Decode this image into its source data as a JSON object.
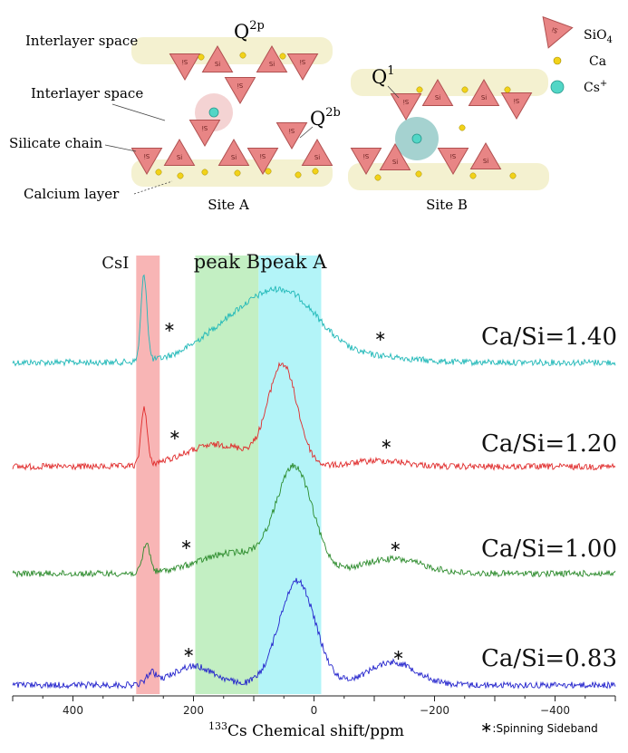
{
  "schematic": {
    "interlayer_space_top": "Interlayer space",
    "interlayer_space_mid": "Interlayer space",
    "silicate_chain": "Silicate chain",
    "calcium_layer": "Calcium layer",
    "site_a": "Site A",
    "site_b": "Site B",
    "q2p_base": "Q",
    "q2p_sup": "2p",
    "q2b_base": "Q",
    "q2b_sup": "2b",
    "q1_base": "Q",
    "q1_sup": "1",
    "si_label": "Si",
    "legend": {
      "sio4_base": "SiO",
      "sio4_sub": "4",
      "ca": "Ca",
      "cs_base": "Cs",
      "cs_sup": "+"
    }
  },
  "colors": {
    "tetra_fill": "#e88585",
    "tetra_stroke": "#b05050",
    "layer_fill": "#f4f1d0",
    "ca_fill": "#f2d21a",
    "cs_fill": "#52d6c6",
    "site_a_halo": "#f0c4c4",
    "site_b_halo": "#8fc7c4",
    "band_csi": "#f7a8a8",
    "band_b": "#b8ecb8",
    "band_a": "#a6f2f7",
    "series_140": "#1fb8b8",
    "series_120": "#e02a2a",
    "series_100": "#2a8a2a",
    "series_083": "#2222cc"
  },
  "chart_data": {
    "type": "line",
    "xlabel_sup": "133",
    "xlabel_main": "Cs Chemical shift/ppm",
    "xlim": [
      500,
      -500
    ],
    "x_reversed": true,
    "x_ticks": [
      400,
      200,
      0,
      -200,
      -400
    ],
    "x_tick_labels": [
      "400",
      "200",
      "0",
      "−200",
      "−400"
    ],
    "y_axis_shown": false,
    "bands": [
      {
        "label": "CsI",
        "from": 295,
        "to": 256
      },
      {
        "label": "peak B",
        "from": 197,
        "to": 92
      },
      {
        "label": "peak A",
        "from": 92,
        "to": -12
      }
    ],
    "series": [
      {
        "name": "Ca/Si=1.40",
        "peaks": [
          {
            "pos": 282,
            "height": 95,
            "width": 5
          },
          {
            "pos": 130,
            "height": 40,
            "width": 60
          },
          {
            "pos": 40,
            "height": 65,
            "width": 55
          },
          {
            "pos": -110,
            "height": 6,
            "width": 55
          }
        ]
      },
      {
        "name": "Ca/Si=1.20",
        "peaks": [
          {
            "pos": 282,
            "height": 58,
            "width": 5
          },
          {
            "pos": 160,
            "height": 22,
            "width": 55
          },
          {
            "pos": 52,
            "height": 100,
            "width": 24
          },
          {
            "pos": -110,
            "height": 6,
            "width": 45
          }
        ]
      },
      {
        "name": "Ca/Si=1.00",
        "peaks": [
          {
            "pos": 278,
            "height": 28,
            "width": 6
          },
          {
            "pos": 130,
            "height": 20,
            "width": 60
          },
          {
            "pos": 32,
            "height": 98,
            "width": 30
          },
          {
            "pos": -130,
            "height": 14,
            "width": 50
          }
        ]
      },
      {
        "name": "Ca/Si=0.83",
        "peaks": [
          {
            "pos": 270,
            "height": 10,
            "width": 8
          },
          {
            "pos": 200,
            "height": 18,
            "width": 35
          },
          {
            "pos": 28,
            "height": 100,
            "width": 30
          },
          {
            "pos": -130,
            "height": 22,
            "width": 40
          }
        ]
      }
    ],
    "sidebands": [
      {
        "series": "Ca/Si=1.40",
        "positions": [
          240,
          -110
        ]
      },
      {
        "series": "Ca/Si=1.20",
        "positions": [
          231,
          -120
        ]
      },
      {
        "series": "Ca/Si=1.00",
        "positions": [
          212,
          -135
        ]
      },
      {
        "series": "Ca/Si=0.83",
        "positions": [
          208,
          -140
        ]
      }
    ],
    "sideband_marker": "∗",
    "sideband_legend": ":Spinning Sideband"
  }
}
